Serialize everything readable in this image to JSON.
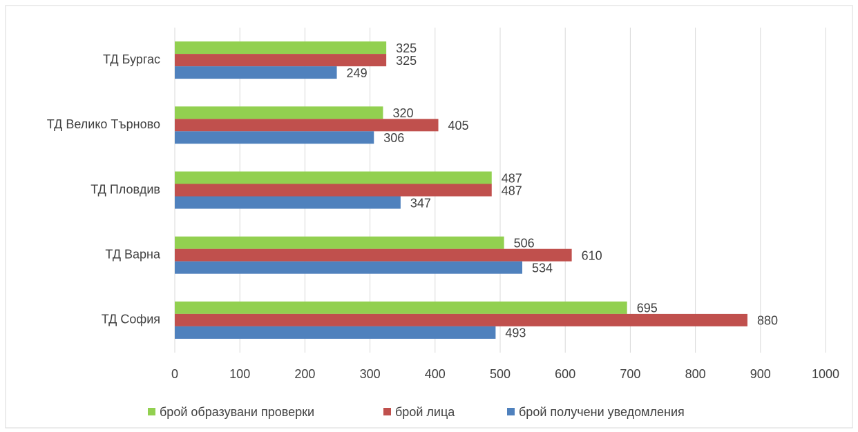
{
  "chart_data": {
    "type": "bar",
    "orientation": "horizontal",
    "categories": [
      "ТД Бургас",
      "ТД Велико Търново",
      "ТД Пловдив",
      "ТД Варна",
      "ТД София"
    ],
    "series": [
      {
        "name": "брой образувани проверки",
        "color": "#92d050",
        "values": [
          325,
          320,
          487,
          506,
          695
        ]
      },
      {
        "name": "брой лица",
        "color": "#c0504d",
        "values": [
          325,
          405,
          487,
          610,
          880
        ]
      },
      {
        "name": "брой получени уведомления",
        "color": "#4f81bd",
        "values": [
          249,
          306,
          347,
          534,
          493
        ]
      }
    ],
    "xlim": [
      0,
      1000
    ],
    "xticks": [
      0,
      100,
      200,
      300,
      400,
      500,
      600,
      700,
      800,
      900,
      1000
    ],
    "grid": true,
    "legend": "bottom"
  }
}
